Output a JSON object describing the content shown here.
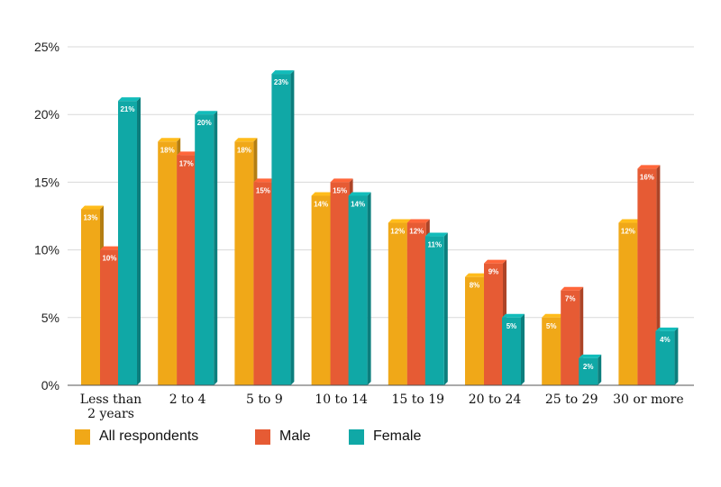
{
  "chart_data": {
    "type": "bar",
    "categories": [
      "Less than 2 years",
      "2 to 4",
      "5 to 9",
      "10 to 14",
      "15 to 19",
      "20 to 24",
      "25 to 29",
      "30 or more"
    ],
    "category_lines": [
      [
        "Less than",
        "2 years"
      ],
      [
        "2 to 4"
      ],
      [
        "5 to 9"
      ],
      [
        "10 to 14"
      ],
      [
        "15 to 19"
      ],
      [
        "20 to 24"
      ],
      [
        "25 to 29"
      ],
      [
        "30 or more"
      ]
    ],
    "series": [
      {
        "name": "All respondents",
        "color": "#F0A818",
        "values": [
          13,
          18,
          18,
          14,
          12,
          8,
          5,
          12
        ]
      },
      {
        "name": "Male",
        "color": "#E65B34",
        "values": [
          10,
          17,
          15,
          15,
          12,
          9,
          7,
          16
        ]
      },
      {
        "name": "Female",
        "color": "#10A8A6",
        "values": [
          21,
          20,
          23,
          14,
          11,
          5,
          2,
          4
        ]
      }
    ],
    "y_ticks": [
      "0%",
      "5%",
      "10%",
      "15%",
      "20%",
      "25%"
    ],
    "ylim": [
      0,
      25
    ],
    "unit": "%",
    "grid": true,
    "legend_position": "bottom-left"
  }
}
